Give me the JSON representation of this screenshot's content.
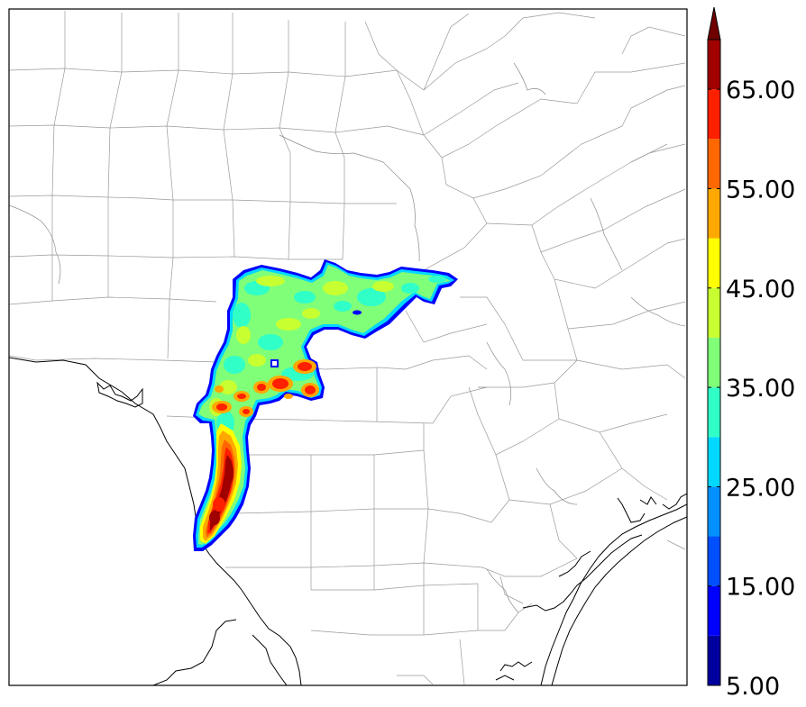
{
  "colorbar": {
    "tick_labels": [
      "5.00",
      "15.00",
      "25.00",
      "35.00",
      "45.00",
      "55.00",
      "65.00"
    ],
    "levels": [
      5,
      10,
      15,
      20,
      25,
      30,
      35,
      40,
      45,
      50,
      55,
      60,
      65,
      70
    ],
    "colors": [
      "#00009f",
      "#0000ff",
      "#0050ff",
      "#0090ff",
      "#00d8ff",
      "#30ffc8",
      "#80ff78",
      "#c8ff30",
      "#ffff00",
      "#ffa800",
      "#ff6800",
      "#ff2000",
      "#a00000"
    ],
    "extend_color": "#700000",
    "extend": "max"
  },
  "map": {
    "background": "#ffffff",
    "county_line_color": "#9a9a9a",
    "coast_border_color": "#000000"
  }
}
